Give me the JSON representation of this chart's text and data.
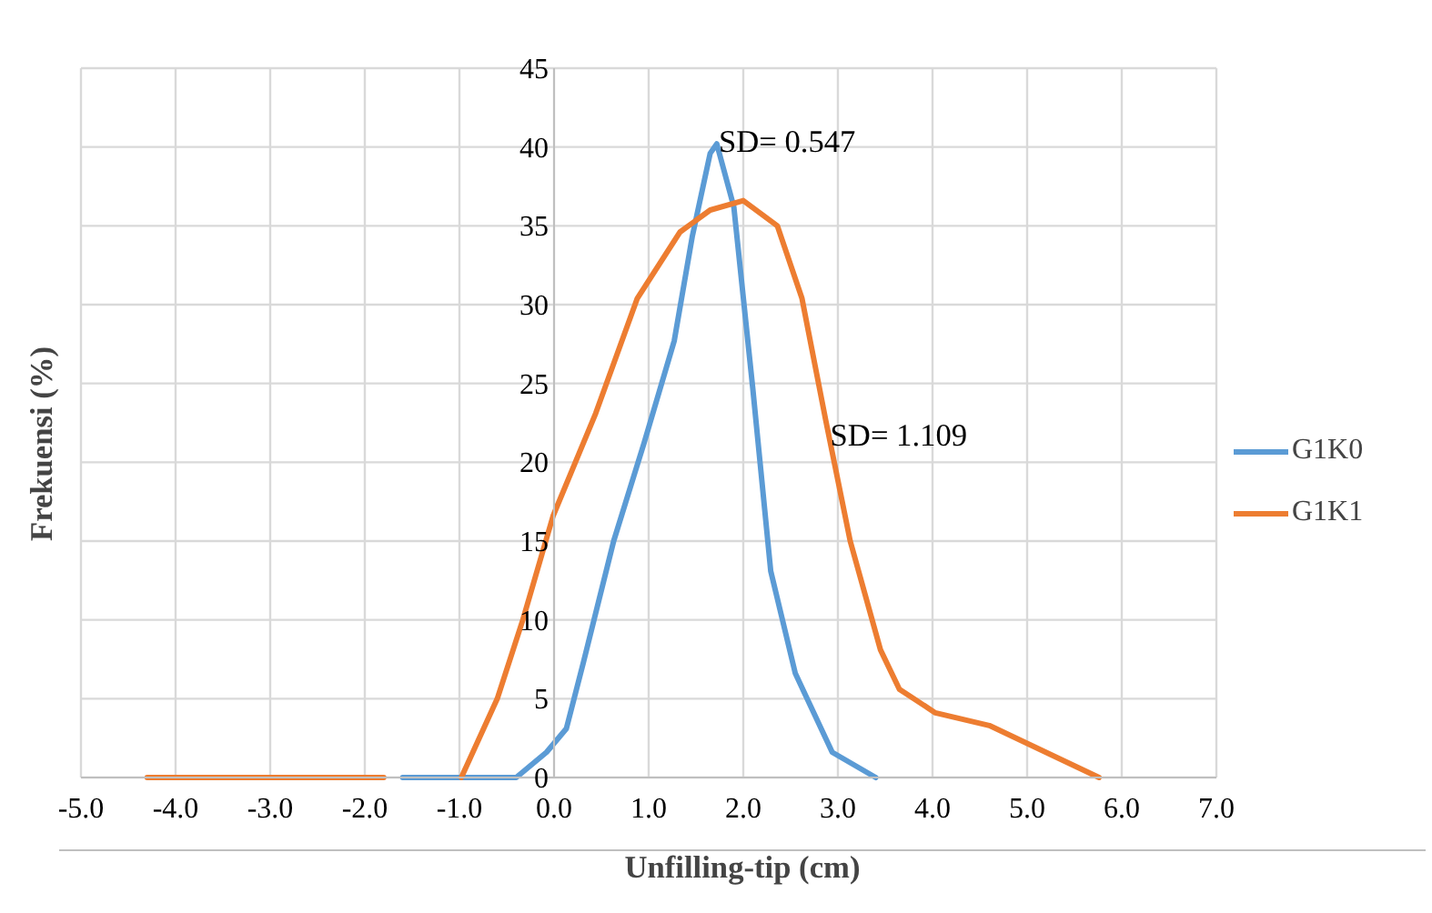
{
  "chart_data": {
    "type": "line",
    "xlabel": "Unfilling-tip (cm)",
    "ylabel": "Frekuensi (%)",
    "xlim": [
      -5,
      7
    ],
    "ylim": [
      0,
      45
    ],
    "xticks": [
      {
        "value": -5,
        "label": "-5.0"
      },
      {
        "value": -4,
        "label": "-4.0"
      },
      {
        "value": -3,
        "label": "-3.0"
      },
      {
        "value": -2,
        "label": "-2.0"
      },
      {
        "value": -1,
        "label": "-1.0"
      },
      {
        "value": 0,
        "label": "0.0"
      },
      {
        "value": 1,
        "label": "1.0"
      },
      {
        "value": 2,
        "label": "2.0"
      },
      {
        "value": 3,
        "label": "3.0"
      },
      {
        "value": 4,
        "label": "4.0"
      },
      {
        "value": 5,
        "label": "5.0"
      },
      {
        "value": 6,
        "label": "6.0"
      },
      {
        "value": 7,
        "label": "7.0"
      }
    ],
    "yticks": [
      0,
      5,
      10,
      15,
      20,
      25,
      30,
      35,
      40,
      45
    ],
    "grid": true,
    "legend": "right",
    "marker": "none",
    "line_style": "solid",
    "series": [
      {
        "name": "G1K0",
        "color": "#5b9bd5",
        "x": [
          -1.6,
          -0.95,
          -0.4,
          -0.08,
          0.13,
          0.31,
          0.63,
          0.95,
          1.27,
          1.46,
          1.65,
          1.72,
          1.9,
          2.1,
          2.29,
          2.55,
          2.94,
          3.4
        ],
        "values": [
          0,
          0,
          0,
          1.6,
          3.1,
          7.3,
          15,
          21.2,
          27.7,
          34.3,
          39.6,
          40.2,
          36.2,
          24.7,
          13.1,
          6.6,
          1.6,
          0
        ]
      },
      {
        "name": "G1K1",
        "color": "#ed7d31",
        "x": [
          -4.3,
          -2.0,
          -1.8,
          -1.4,
          -0.98,
          -0.6,
          -0.33,
          -0.01,
          0.44,
          0.88,
          1.33,
          1.65,
          2.0,
          2.36,
          2.62,
          2.87,
          3.13,
          3.45,
          3.65,
          4.03,
          4.6,
          5.76
        ],
        "values": [
          0,
          0,
          0,
          null,
          0,
          5,
          10,
          16.6,
          23.1,
          30.4,
          34.6,
          36,
          36.6,
          35,
          30.4,
          22.7,
          15,
          8.1,
          5.6,
          4.1,
          3.3,
          0
        ]
      }
    ],
    "annotations": [
      {
        "text": "SD= 0.547",
        "x": 1.72,
        "y": 40.3
      },
      {
        "text": "SD= 1.109",
        "x": 2.9,
        "y": 21.7
      }
    ]
  }
}
